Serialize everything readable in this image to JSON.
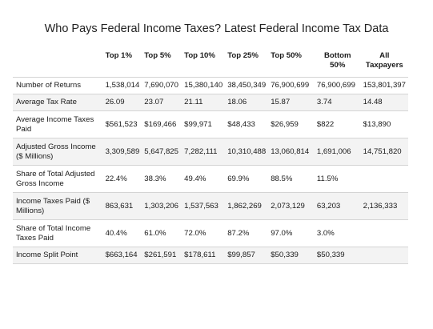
{
  "title": "Who Pays Federal Income Taxes? Latest Federal Income Tax Data",
  "chart_data": {
    "type": "table",
    "columns": [
      "",
      "Top 1%",
      "Top 5%",
      "Top 10%",
      "Top 25%",
      "Top 50%",
      "Bottom 50%",
      "All Taxpayers"
    ],
    "rows": [
      {
        "label": "Number of Returns",
        "values": [
          "1,538,014",
          "7,690,070",
          "15,380,140",
          "38,450,349",
          "76,900,699",
          "76,900,699",
          "153,801,397"
        ]
      },
      {
        "label": "Average Tax Rate",
        "values": [
          "26.09",
          "23.07",
          "21.11",
          "18.06",
          "15.87",
          "3.74",
          "14.48"
        ]
      },
      {
        "label": "Average Income Taxes Paid",
        "values": [
          "$561,523",
          "$169,466",
          "$99,971",
          "$48,433",
          "$26,959",
          "$822",
          "$13,890"
        ]
      },
      {
        "label": "Adjusted Gross Income ($ Millions)",
        "values": [
          "3,309,589",
          "5,647,825",
          "7,282,111",
          "10,310,488",
          "13,060,814",
          "1,691,006",
          "14,751,820"
        ]
      },
      {
        "label": "Share of Total Adjusted Gross Income",
        "values": [
          "22.4%",
          "38.3%",
          "49.4%",
          "69.9%",
          "88.5%",
          "11.5%",
          ""
        ]
      },
      {
        "label": "Income Taxes Paid ($ Millions)",
        "values": [
          "863,631",
          "1,303,206",
          "1,537,563",
          "1,862,269",
          "2,073,129",
          "63,203",
          "2,136,333"
        ]
      },
      {
        "label": "Share of Total Income Taxes Paid",
        "values": [
          "40.4%",
          "61.0%",
          "72.0%",
          "87.2%",
          "97.0%",
          "3.0%",
          ""
        ]
      },
      {
        "label": "Income Split Point",
        "values": [
          "$663,164",
          "$261,591",
          "$178,611",
          "$99,857",
          "$50,339",
          "$50,339",
          ""
        ]
      }
    ]
  }
}
